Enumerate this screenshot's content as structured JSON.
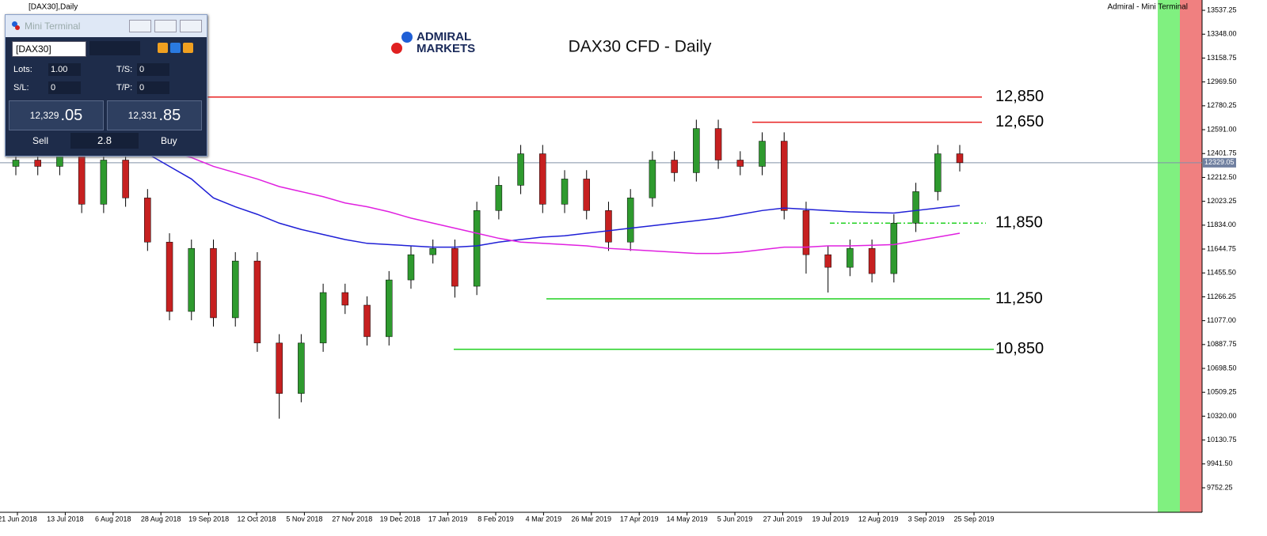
{
  "window": {
    "title": "[DAX30],Daily",
    "ea_label": "Admiral - Mini Terminal"
  },
  "chart": {
    "type": "candlestick",
    "title": "DAX30 CFD - Daily",
    "logo": [
      "ADMIRAL",
      "MARKETS"
    ],
    "ylim": [
      9558,
      13619
    ],
    "yticks": [
      {
        "value": 13537.25,
        "label": "13537.25"
      },
      {
        "value": 13348,
        "label": "13348.00"
      },
      {
        "value": 13158.75,
        "label": "13158.75"
      },
      {
        "value": 12969.5,
        "label": "12969.50"
      },
      {
        "value": 12780.25,
        "label": "12780.25"
      },
      {
        "value": 12591,
        "label": "12591.00"
      },
      {
        "value": 12401.75,
        "label": "12401.75"
      },
      {
        "value": 12212.5,
        "label": "12212.50"
      },
      {
        "value": 12023.25,
        "label": "12023.25"
      },
      {
        "value": 11834,
        "label": "11834.00"
      },
      {
        "value": 11644.75,
        "label": "11644.75"
      },
      {
        "value": 11455.5,
        "label": "11455.50"
      },
      {
        "value": 11266.25,
        "label": "11266.25"
      },
      {
        "value": 11077,
        "label": "11077.00"
      },
      {
        "value": 10887.75,
        "label": "10887.75"
      },
      {
        "value": 10698.5,
        "label": "10698.50"
      },
      {
        "value": 10509.25,
        "label": "10509.25"
      },
      {
        "value": 10320,
        "label": "10320.00"
      },
      {
        "value": 10130.75,
        "label": "10130.75"
      },
      {
        "value": 9941.5,
        "label": "9941.50"
      },
      {
        "value": 9752.25,
        "label": "9752.25"
      }
    ],
    "xticks": [
      "21 Jun 2018",
      "13 Jul 2018",
      "6 Aug 2018",
      "28 Aug 2018",
      "19 Sep 2018",
      "12 Oct 2018",
      "5 Nov 2018",
      "27 Nov 2018",
      "19 Dec 2018",
      "17 Jan 2019",
      "8 Feb 2019",
      "4 Mar 2019",
      "26 Mar 2019",
      "17 Apr 2019",
      "14 May 2019",
      "5 Jun 2019",
      "27 Jun 2019",
      "19 Jul 2019",
      "12 Aug 2019",
      "3 Sep 2019",
      "25 Sep 2019"
    ],
    "candles": [
      [
        12300,
        12420,
        12230,
        12350
      ],
      [
        12350,
        12420,
        12230,
        12300
      ],
      [
        12300,
        12450,
        12230,
        12380
      ],
      [
        12380,
        12450,
        11930,
        12000
      ],
      [
        12000,
        12420,
        11930,
        12350
      ],
      [
        12350,
        12420,
        11980,
        12050
      ],
      [
        12050,
        12120,
        11630,
        11700
      ],
      [
        11700,
        11770,
        11080,
        11150
      ],
      [
        11150,
        11720,
        11080,
        11650
      ],
      [
        11650,
        11720,
        11030,
        11100
      ],
      [
        11100,
        11620,
        11030,
        11550
      ],
      [
        11550,
        11620,
        10830,
        10900
      ],
      [
        10900,
        10970,
        10300,
        10500
      ],
      [
        10500,
        10970,
        10430,
        10900
      ],
      [
        10900,
        11370,
        10830,
        11300
      ],
      [
        11300,
        11370,
        11130,
        11200
      ],
      [
        11200,
        11270,
        10880,
        10950
      ],
      [
        10950,
        11470,
        10880,
        11400
      ],
      [
        11400,
        11670,
        11330,
        11600
      ],
      [
        11600,
        11720,
        11530,
        11650
      ],
      [
        11650,
        11720,
        11260,
        11350
      ],
      [
        11350,
        12020,
        11280,
        11950
      ],
      [
        11950,
        12220,
        11880,
        12150
      ],
      [
        12150,
        12470,
        12080,
        12400
      ],
      [
        12400,
        12470,
        11930,
        12000
      ],
      [
        12000,
        12270,
        11930,
        12200
      ],
      [
        12200,
        12270,
        11880,
        11950
      ],
      [
        11950,
        12020,
        11630,
        11700
      ],
      [
        11700,
        12120,
        11630,
        12050
      ],
      [
        12050,
        12420,
        11980,
        12350
      ],
      [
        12350,
        12420,
        12180,
        12250
      ],
      [
        12250,
        12670,
        12180,
        12600
      ],
      [
        12600,
        12670,
        12280,
        12350
      ],
      [
        12350,
        12420,
        12230,
        12300
      ],
      [
        12300,
        12570,
        12230,
        12500
      ],
      [
        12500,
        12570,
        11880,
        11950
      ],
      [
        11950,
        12020,
        11450,
        11600
      ],
      [
        11600,
        11670,
        11300,
        11500
      ],
      [
        11500,
        11720,
        11430,
        11650
      ],
      [
        11650,
        11720,
        11380,
        11450
      ],
      [
        11450,
        11920,
        11380,
        11850
      ],
      [
        11850,
        12170,
        11780,
        12100
      ],
      [
        12100,
        12470,
        12030,
        12400
      ],
      [
        12400,
        12470,
        12260,
        12329
      ]
    ],
    "up_color": "#2e9a2e",
    "down_color": "#c62020",
    "ma": [
      {
        "color": "#1f1fd6",
        "values": [
          12600,
          12560,
          12540,
          12520,
          12500,
          12450,
          12400,
          12300,
          12200,
          12050,
          11980,
          11920,
          11850,
          11800,
          11760,
          11720,
          11690,
          11680,
          11670,
          11660,
          11660,
          11670,
          11700,
          11720,
          11740,
          11750,
          11770,
          11790,
          11810,
          11830,
          11850,
          11870,
          11890,
          11920,
          11950,
          11970,
          11960,
          11950,
          11940,
          11935,
          11930,
          11950,
          11970,
          11990
        ]
      },
      {
        "color": "#e020e0",
        "values": [
          12700,
          12640,
          12620,
          12590,
          12560,
          12520,
          12480,
          12420,
          12370,
          12300,
          12250,
          12200,
          12140,
          12100,
          12060,
          12010,
          11980,
          11940,
          11890,
          11850,
          11810,
          11770,
          11730,
          11700,
          11690,
          11680,
          11670,
          11650,
          11640,
          11630,
          11620,
          11610,
          11610,
          11620,
          11640,
          11660,
          11660,
          11670,
          11670,
          11675,
          11680,
          11710,
          11740,
          11770
        ]
      }
    ],
    "levels": [
      {
        "value": 12850,
        "label": "12,850",
        "color": "#e82020"
      },
      {
        "value": 12650,
        "label": "12,650",
        "color": "#e82020"
      },
      {
        "value": 11850,
        "label": "11,850",
        "color": "#20d020"
      },
      {
        "value": 11250,
        "label": "11,250",
        "color": "#20d020"
      },
      {
        "value": 10850,
        "label": "10,850",
        "color": "#20d020"
      }
    ],
    "current_price": {
      "value": 12329.05,
      "label": "12329.05"
    }
  },
  "terminal": {
    "title": "Mini Terminal",
    "symbol": "[DAX30]",
    "fields": [
      {
        "label": "Lots:",
        "value": "1.00"
      },
      {
        "label": "T/S:",
        "value": "0"
      },
      {
        "label": "S/L:",
        "value": "0"
      },
      {
        "label": "T/P:",
        "value": "0"
      }
    ],
    "sell": {
      "price_main": "12,329",
      "price_pips": ".05",
      "label": "Sell"
    },
    "buy": {
      "price_main": "12,331",
      "price_pips": ".85",
      "label": "Buy"
    },
    "spread": "2.8"
  }
}
